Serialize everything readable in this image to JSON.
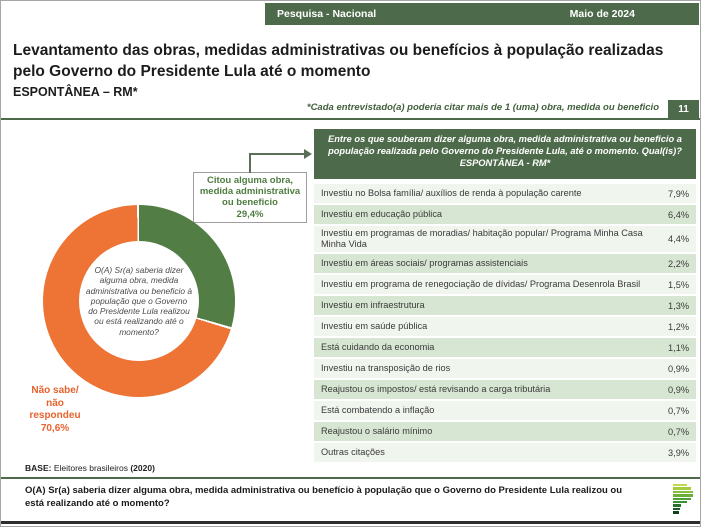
{
  "topbar": {
    "left_label": "Pesquisa - Nacional",
    "right_label": "Maio de 2024"
  },
  "title": {
    "main": "Levantamento das obras, medidas administrativas ou benefícios à população realizadas pelo Governo do Presidente Lula até o momento",
    "subtitle": "ESPONTÂNEA – RM*"
  },
  "footnote": "*Cada entrevistado(a) poderia citar mais de 1 (uma) obra, medida ou beneficio",
  "page_number": "11",
  "callout": {
    "label": "Citou alguma obra, medida administrativa ou beneficio",
    "value": "29,4%"
  },
  "donut_center_question": "O(A) Sr(a) saberia dizer alguma obra, medida administrativa ou beneficio à população que o Governo do Presidente Lula realizou ou está realizando até o momento?",
  "no_answer": {
    "label": "Não sabe/ não respondeu",
    "value": "70,6%"
  },
  "table": {
    "header_question": "Entre os que souberam dizer alguma obra, medida administrativa ou beneficio a população realizada pelo Governo do Presidente Lula, até o momento. Qual(is)?",
    "header_subtitle": "ESPONTÂNEA - RM*",
    "rows": [
      {
        "label": "Investiu no Bolsa família/ auxílios de renda à população carente",
        "value": "7,9%"
      },
      {
        "label": "Investiu em educação pública",
        "value": "6,4%"
      },
      {
        "label": "Investiu em programas de moradias/ habitação popular/ Programa Minha Casa Minha Vida",
        "value": "4,4%"
      },
      {
        "label": "Investiu em áreas sociais/ programas assistenciais",
        "value": "2,2%"
      },
      {
        "label": "Investiu em programa de renegociação de dívidas/ Programa Desenrola Brasil",
        "value": "1,5%"
      },
      {
        "label": "Investiu em infraestrutura",
        "value": "1,3%"
      },
      {
        "label": "Investiu em saúde pública",
        "value": "1,2%"
      },
      {
        "label": "Está cuidando da economia",
        "value": "1,1%"
      },
      {
        "label": "Investiu na transposição de rios",
        "value": "0,9%"
      },
      {
        "label": "Reajustou os impostos/ está revisando a carga tributária",
        "value": "0,9%"
      },
      {
        "label": "Está combatendo a inflação",
        "value": "0,7%"
      },
      {
        "label": "Reajustou o salário mínimo",
        "value": "0,7%"
      },
      {
        "label": "Outras citações",
        "value": "3,9%"
      }
    ]
  },
  "base_note": {
    "label": "BASE:",
    "text": " Eleitores brasileiros ",
    "year": "(2020)"
  },
  "footer_question": "O(A) Sr(a) saberia dizer alguma obra, medida administrativa ou benefício à população que o Governo do Presidente Lula realizou ou está realizando até o momento?",
  "colors": {
    "header_green": "#4d6b4a",
    "donut_green": "#527d45",
    "donut_orange": "#ED7434",
    "no_answer_label": "#e8622f",
    "callout_text": "#4e7d3f",
    "row_light": "#f0f5ee",
    "row_green": "#d7e6d2"
  },
  "logo": {
    "name": "parana-pesquisas-logo",
    "bars": [
      {
        "w": 14,
        "c": "#c3d84e"
      },
      {
        "w": 18,
        "c": "#a6cb41"
      },
      {
        "w": 20,
        "c": "#8abd3a"
      },
      {
        "w": 20,
        "c": "#6cae36"
      },
      {
        "w": 18,
        "c": "#4fa033"
      },
      {
        "w": 14,
        "c": "#379233"
      },
      {
        "w": 8,
        "c": "#27732e"
      },
      {
        "w": 7,
        "c": "#1a5a28"
      },
      {
        "w": 6,
        "c": "#113f1e"
      }
    ]
  },
  "chart_data": [
    {
      "type": "pie",
      "title": "O(A) Sr(a) saberia dizer alguma obra, medida administrativa ou beneficio à população que o Governo do Presidente Lula realizou ou está realizando até o momento?",
      "labels": [
        "Citou alguma obra, medida administrativa ou beneficio",
        "Não sabe/ não respondeu"
      ],
      "values": [
        29.4,
        70.6
      ],
      "colors": [
        "#527d45",
        "#ED7434"
      ],
      "style": "donut",
      "legend_position": "callout-labels"
    },
    {
      "type": "table",
      "title": "Entre os que souberam dizer alguma obra, medida administrativa ou beneficio a população realizada pelo Governo do Presidente Lula, até o momento. Qual(is)? ESPONTÂNEA - RM*",
      "categories": [
        "Investiu no Bolsa família/ auxílios de renda à população carente",
        "Investiu em educação pública",
        "Investiu em programas de moradias/ habitação popular/ Programa Minha Casa Minha Vida",
        "Investiu em áreas sociais/ programas assistenciais",
        "Investiu em programa de renegociação de dívidas/ Programa Desenrola Brasil",
        "Investiu em infraestrutura",
        "Investiu em saúde pública",
        "Está cuidando da economia",
        "Investiu na transposição de rios",
        "Reajustou os impostos/ está revisando a carga tributária",
        "Está combatendo a inflação",
        "Reajustou o salário mínimo",
        "Outras citações"
      ],
      "values": [
        7.9,
        6.4,
        4.4,
        2.2,
        1.5,
        1.3,
        1.2,
        1.1,
        0.9,
        0.9,
        0.7,
        0.7,
        3.9
      ],
      "unit": "%"
    }
  ]
}
